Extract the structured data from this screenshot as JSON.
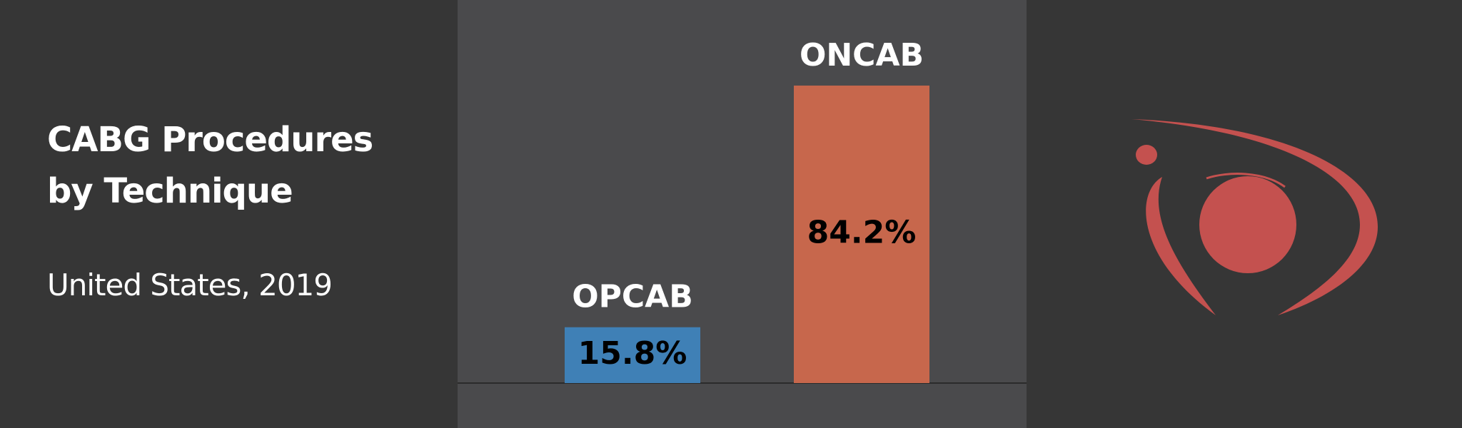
{
  "chart_data": {
    "type": "bar",
    "title": "CABG Procedures by Technique",
    "subtitle": "United States, 2019",
    "categories": [
      "OPCAB",
      "ONCAB"
    ],
    "values": [
      15.8,
      84.2
    ],
    "value_labels": [
      "15.8%",
      "84.2%"
    ],
    "colors": [
      "#3f80b6",
      "#c7674c"
    ],
    "ylim": [
      0,
      85
    ]
  }
}
